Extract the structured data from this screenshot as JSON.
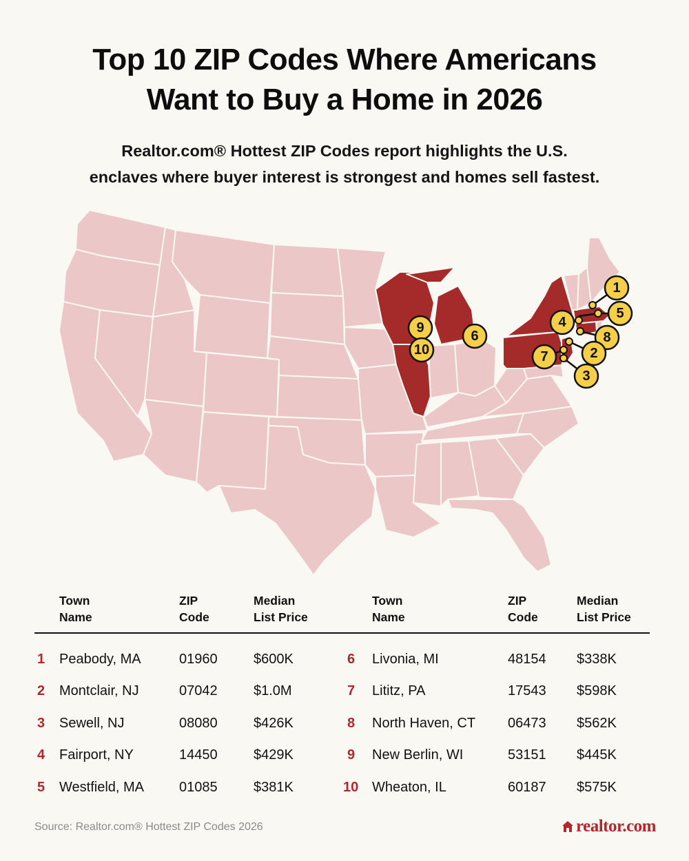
{
  "title": {
    "line1": "Top 10 ZIP Codes Where Americans",
    "line2": "Want to Buy a Home in 2026"
  },
  "subtitle": {
    "line1": "Realtor.com® Hottest ZIP Codes report highlights the U.S.",
    "line2": "enclaves where buyer interest is strongest and homes sell fastest."
  },
  "colors": {
    "accent": "#b3262d",
    "highlight_state": "#a52a2a",
    "base_state": "#ecc7c7",
    "marker": "#f4cf47",
    "background": "#faf8f3"
  },
  "map": {
    "highlighted_states": [
      "WI",
      "IL",
      "MI",
      "NY",
      "PA",
      "NJ",
      "CT",
      "MA"
    ],
    "markers": [
      "1",
      "2",
      "3",
      "4",
      "5",
      "6",
      "7",
      "8",
      "9",
      "10"
    ]
  },
  "table": {
    "headers": {
      "town": [
        "Town",
        "Name"
      ],
      "zip": [
        "ZIP",
        "Code"
      ],
      "price": [
        "Median",
        "List Price"
      ]
    },
    "rows": [
      {
        "rank": "1",
        "town": "Peabody, MA",
        "zip": "01960",
        "price": "$600K"
      },
      {
        "rank": "2",
        "town": "Montclair, NJ",
        "zip": "07042",
        "price": "$1.0M"
      },
      {
        "rank": "3",
        "town": "Sewell, NJ",
        "zip": "08080",
        "price": "$426K"
      },
      {
        "rank": "4",
        "town": "Fairport, NY",
        "zip": "14450",
        "price": "$429K"
      },
      {
        "rank": "5",
        "town": "Westfield, MA",
        "zip": "01085",
        "price": "$381K"
      },
      {
        "rank": "6",
        "town": "Livonia, MI",
        "zip": "48154",
        "price": "$338K"
      },
      {
        "rank": "7",
        "town": "Lititz, PA",
        "zip": "17543",
        "price": "$598K"
      },
      {
        "rank": "8",
        "town": "North Haven, CT",
        "zip": "06473",
        "price": "$562K"
      },
      {
        "rank": "9",
        "town": "New Berlin, WI",
        "zip": "53151",
        "price": "$445K"
      },
      {
        "rank": "10",
        "town": "Wheaton, IL",
        "zip": "60187",
        "price": "$575K"
      }
    ]
  },
  "source": "Source: Realtor.com® Hottest ZIP Codes 2026",
  "logo": {
    "text": "realtor.com",
    "icon": "house-icon"
  }
}
